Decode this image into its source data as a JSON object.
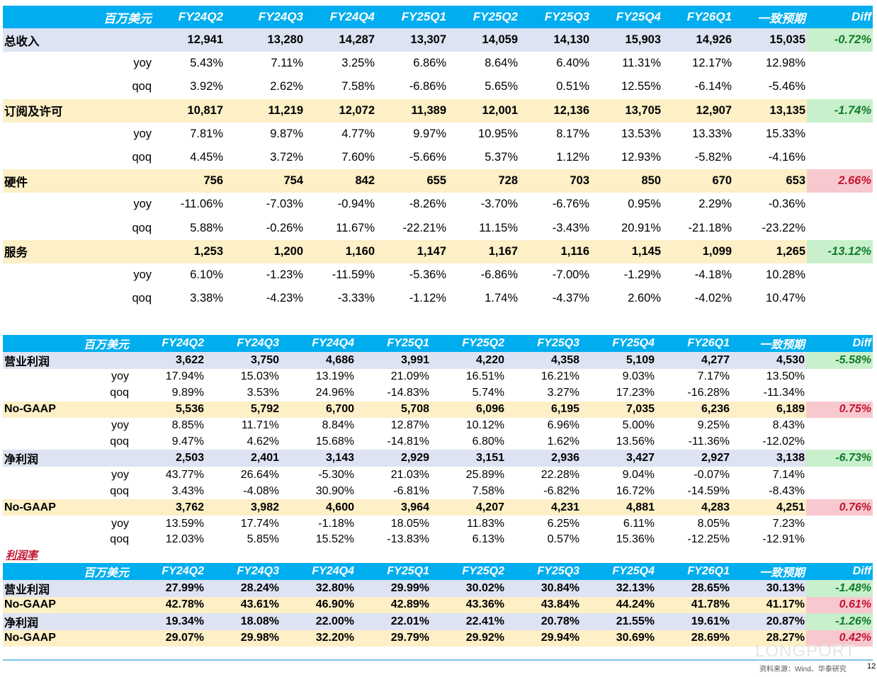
{
  "columns": [
    "FY24Q2",
    "FY24Q3",
    "FY24Q4",
    "FY25Q1",
    "FY25Q2",
    "FY25Q3",
    "FY25Q4",
    "FY26Q1",
    "一致预期",
    "Diff"
  ],
  "unit_label": "百万美元",
  "section3_title": "利润率",
  "table1": {
    "rows": [
      {
        "kind": "main",
        "bg": "blue",
        "label": "总收入",
        "values": [
          "12,941",
          "13,280",
          "14,287",
          "13,307",
          "14,059",
          "14,130",
          "15,903",
          "14,926",
          "15,035"
        ],
        "diff": "-0.72%",
        "diff_tone": "green"
      },
      {
        "kind": "sub",
        "label": "yoy",
        "values": [
          "5.43%",
          "7.11%",
          "3.25%",
          "6.86%",
          "8.64%",
          "6.40%",
          "11.31%",
          "12.17%",
          "12.98%"
        ]
      },
      {
        "kind": "sub",
        "label": "qoq",
        "values": [
          "3.92%",
          "2.62%",
          "7.58%",
          "-6.86%",
          "5.65%",
          "0.51%",
          "12.55%",
          "-6.14%",
          "-5.46%"
        ]
      },
      {
        "kind": "main",
        "bg": "tan",
        "label": "订阅及许可",
        "values": [
          "10,817",
          "11,219",
          "12,072",
          "11,389",
          "12,001",
          "12,136",
          "13,705",
          "12,907",
          "13,135"
        ],
        "diff": "-1.74%",
        "diff_tone": "green"
      },
      {
        "kind": "sub",
        "label": "yoy",
        "values": [
          "7.81%",
          "9.87%",
          "4.77%",
          "9.97%",
          "10.95%",
          "8.17%",
          "13.53%",
          "13.33%",
          "15.33%"
        ]
      },
      {
        "kind": "sub",
        "label": "qoq",
        "values": [
          "4.45%",
          "3.72%",
          "7.60%",
          "-5.66%",
          "5.37%",
          "1.12%",
          "12.93%",
          "-5.82%",
          "-4.16%"
        ]
      },
      {
        "kind": "main",
        "bg": "tan",
        "label": "硬件",
        "values": [
          "756",
          "754",
          "842",
          "655",
          "728",
          "703",
          "850",
          "670",
          "653"
        ],
        "diff": "2.66%",
        "diff_tone": "red"
      },
      {
        "kind": "sub",
        "label": "yoy",
        "values": [
          "-11.06%",
          "-7.03%",
          "-0.94%",
          "-8.26%",
          "-3.70%",
          "-6.76%",
          "0.95%",
          "2.29%",
          "-0.36%"
        ]
      },
      {
        "kind": "sub",
        "label": "qoq",
        "values": [
          "5.88%",
          "-0.26%",
          "11.67%",
          "-22.21%",
          "11.15%",
          "-3.43%",
          "20.91%",
          "-21.18%",
          "-23.22%"
        ]
      },
      {
        "kind": "main",
        "bg": "tan",
        "label": "服务",
        "values": [
          "1,253",
          "1,200",
          "1,160",
          "1,147",
          "1,167",
          "1,116",
          "1,145",
          "1,099",
          "1,265"
        ],
        "diff": "-13.12%",
        "diff_tone": "green"
      },
      {
        "kind": "sub",
        "label": "yoy",
        "values": [
          "6.10%",
          "-1.23%",
          "-11.59%",
          "-5.36%",
          "-6.86%",
          "-7.00%",
          "-1.29%",
          "-4.18%",
          "10.28%"
        ]
      },
      {
        "kind": "sub",
        "label": "qoq",
        "values": [
          "3.38%",
          "-4.23%",
          "-3.33%",
          "-1.12%",
          "1.74%",
          "-4.37%",
          "2.60%",
          "-4.02%",
          "10.47%"
        ]
      }
    ]
  },
  "table2": {
    "rows": [
      {
        "kind": "main",
        "bg": "blue",
        "label": "营业利润",
        "values": [
          "3,622",
          "3,750",
          "4,686",
          "3,991",
          "4,220",
          "4,358",
          "5,109",
          "4,277",
          "4,530"
        ],
        "diff": "-5.58%",
        "diff_tone": "green"
      },
      {
        "kind": "sub",
        "label": "yoy",
        "values": [
          "17.94%",
          "15.03%",
          "13.19%",
          "21.09%",
          "16.51%",
          "16.21%",
          "9.03%",
          "7.17%",
          "13.50%"
        ]
      },
      {
        "kind": "sub",
        "label": "qoq",
        "values": [
          "9.89%",
          "3.53%",
          "24.96%",
          "-14.83%",
          "5.74%",
          "3.27%",
          "17.23%",
          "-16.28%",
          "-11.34%"
        ]
      },
      {
        "kind": "main",
        "bg": "tan",
        "label": "No-GAAP",
        "values": [
          "5,536",
          "5,792",
          "6,700",
          "5,708",
          "6,096",
          "6,195",
          "7,035",
          "6,236",
          "6,189"
        ],
        "diff": "0.75%",
        "diff_tone": "red"
      },
      {
        "kind": "sub",
        "label": "yoy",
        "values": [
          "8.85%",
          "11.71%",
          "8.84%",
          "12.87%",
          "10.12%",
          "6.96%",
          "5.00%",
          "9.25%",
          "8.43%"
        ]
      },
      {
        "kind": "sub",
        "label": "qoq",
        "values": [
          "9.47%",
          "4.62%",
          "15.68%",
          "-14.81%",
          "6.80%",
          "1.62%",
          "13.56%",
          "-11.36%",
          "-12.02%"
        ]
      },
      {
        "kind": "main",
        "bg": "blue",
        "label": "净利润",
        "values": [
          "2,503",
          "2,401",
          "3,143",
          "2,929",
          "3,151",
          "2,936",
          "3,427",
          "2,927",
          "3,138"
        ],
        "diff": "-6.73%",
        "diff_tone": "green"
      },
      {
        "kind": "sub",
        "label": "yoy",
        "values": [
          "43.77%",
          "26.64%",
          "-5.30%",
          "21.03%",
          "25.89%",
          "22.28%",
          "9.04%",
          "-0.07%",
          "7.14%"
        ]
      },
      {
        "kind": "sub",
        "label": "qoq",
        "values": [
          "3.43%",
          "-4.08%",
          "30.90%",
          "-6.81%",
          "7.58%",
          "-6.82%",
          "16.72%",
          "-14.59%",
          "-8.43%"
        ]
      },
      {
        "kind": "main",
        "bg": "tan",
        "label": "No-GAAP",
        "values": [
          "3,762",
          "3,982",
          "4,600",
          "3,964",
          "4,207",
          "4,231",
          "4,881",
          "4,283",
          "4,251"
        ],
        "diff": "0.76%",
        "diff_tone": "red"
      },
      {
        "kind": "sub",
        "label": "yoy",
        "values": [
          "13.59%",
          "17.74%",
          "-1.18%",
          "18.05%",
          "11.83%",
          "6.25%",
          "6.11%",
          "8.05%",
          "7.23%"
        ]
      },
      {
        "kind": "sub",
        "label": "qoq",
        "values": [
          "12.03%",
          "5.85%",
          "15.52%",
          "-13.83%",
          "6.13%",
          "0.57%",
          "15.36%",
          "-12.25%",
          "-12.91%"
        ]
      }
    ]
  },
  "table3": {
    "rows": [
      {
        "kind": "main",
        "bg": "blue",
        "label": "营业利润",
        "values": [
          "27.99%",
          "28.24%",
          "32.80%",
          "29.99%",
          "30.02%",
          "30.84%",
          "32.13%",
          "28.65%",
          "30.13%"
        ],
        "diff": "-1.48%",
        "diff_tone": "green"
      },
      {
        "kind": "main",
        "bg": "tan",
        "label": "No-GAAP",
        "values": [
          "42.78%",
          "43.61%",
          "46.90%",
          "42.89%",
          "43.36%",
          "43.84%",
          "44.24%",
          "41.78%",
          "41.17%"
        ],
        "diff": "0.61%",
        "diff_tone": "red"
      },
      {
        "kind": "main",
        "bg": "blue",
        "label": "净利润",
        "values": [
          "19.34%",
          "18.08%",
          "22.00%",
          "22.01%",
          "22.41%",
          "20.78%",
          "21.55%",
          "19.61%",
          "20.87%"
        ],
        "diff": "-1.26%",
        "diff_tone": "green"
      },
      {
        "kind": "main",
        "bg": "tan",
        "label": "No-GAAP",
        "values": [
          "29.07%",
          "29.98%",
          "32.20%",
          "29.79%",
          "29.92%",
          "29.94%",
          "30.69%",
          "28.69%",
          "28.27%"
        ],
        "diff": "0.42%",
        "diff_tone": "red"
      }
    ]
  },
  "footer": {
    "source": "资料来源：Wind、华泰研究",
    "page_number": "12",
    "watermark": "LONGPORT"
  },
  "colors": {
    "header_bg": "#00aeef",
    "row_blue": "#dde3f2",
    "row_tan": "#fdefc6",
    "diff_green_bg": "#c9f0cc",
    "diff_red_bg": "#f8c8cf"
  }
}
